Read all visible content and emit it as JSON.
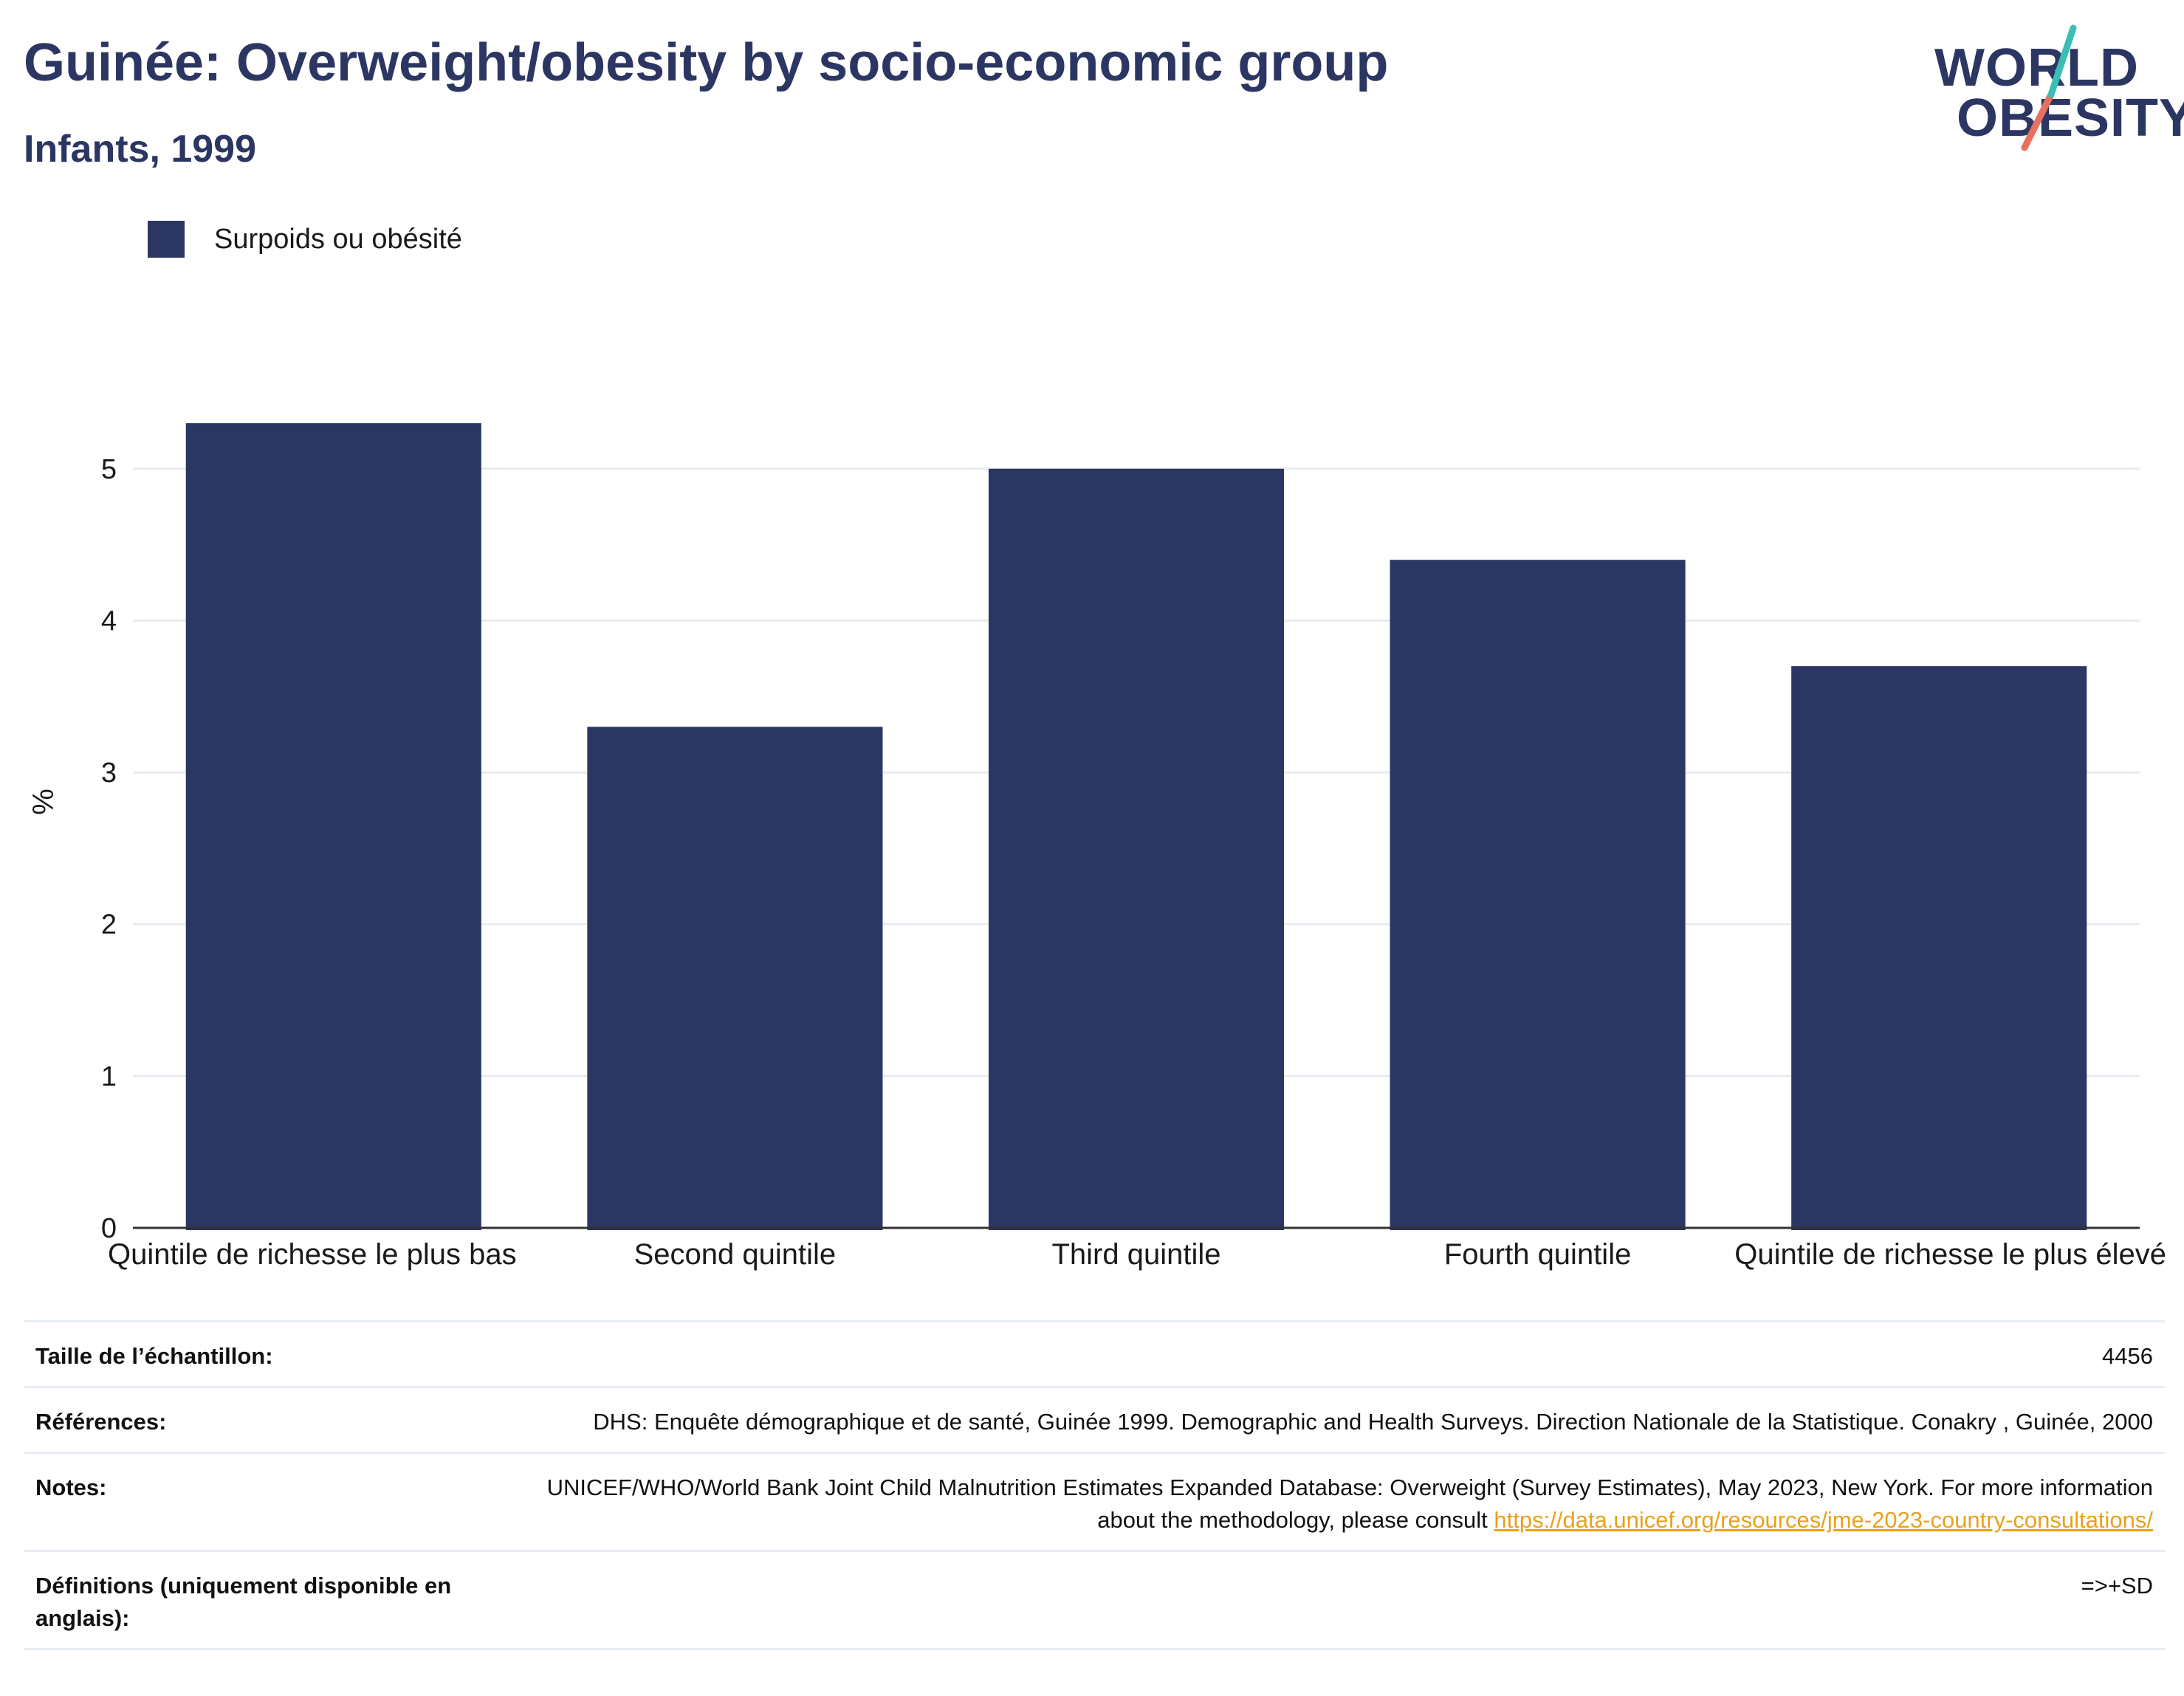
{
  "header": {
    "title": "Guinée: Overweight/obesity by socio-economic group",
    "subtitle": "Infants, 1999"
  },
  "logo": {
    "line1": "WORLD",
    "line2": "OBESITY",
    "accent_teal": "#3bbfb4",
    "accent_coral": "#e8705f"
  },
  "colors": {
    "bar": "#2b3662",
    "title": "#2b3662",
    "grid": "#e8ebf2",
    "link": "#e8a21a"
  },
  "chart_data": {
    "type": "bar",
    "categories": [
      "Quintile de richesse le plus bas",
      "Second quintile",
      "Third quintile",
      "Fourth quintile",
      "Quintile de richesse le plus élevé"
    ],
    "series": [
      {
        "name": "Surpoids ou obésité",
        "values": [
          5.3,
          3.3,
          5.0,
          4.4,
          3.7
        ]
      }
    ],
    "ylabel": "%",
    "ylim": [
      0,
      5.5
    ],
    "yticks": [
      0,
      1,
      2,
      3,
      4,
      5
    ],
    "grid": true,
    "legend_position": "top-left"
  },
  "info": {
    "sample_label": "Taille de l’échantillon:",
    "sample_value": "4456",
    "references_label": "Références:",
    "references_value": "DHS: Enquête démographique et de santé, Guinée 1999. Demographic and Health Surveys. Direction Nationale de la Statistique. Conakry , Guinée, 2000",
    "notes_label": "Notes:",
    "notes_text": "UNICEF/WHO/World Bank Joint Child Malnutrition Estimates Expanded Database: Overweight (Survey Estimates), May 2023, New York. For more information about the methodology, please consult ",
    "notes_link": "https://data.unicef.org/resources/jme-2023-country-consultations/",
    "definitions_label": "Définitions (uniquement disponible en anglais):",
    "definitions_value": "=>+SD"
  }
}
